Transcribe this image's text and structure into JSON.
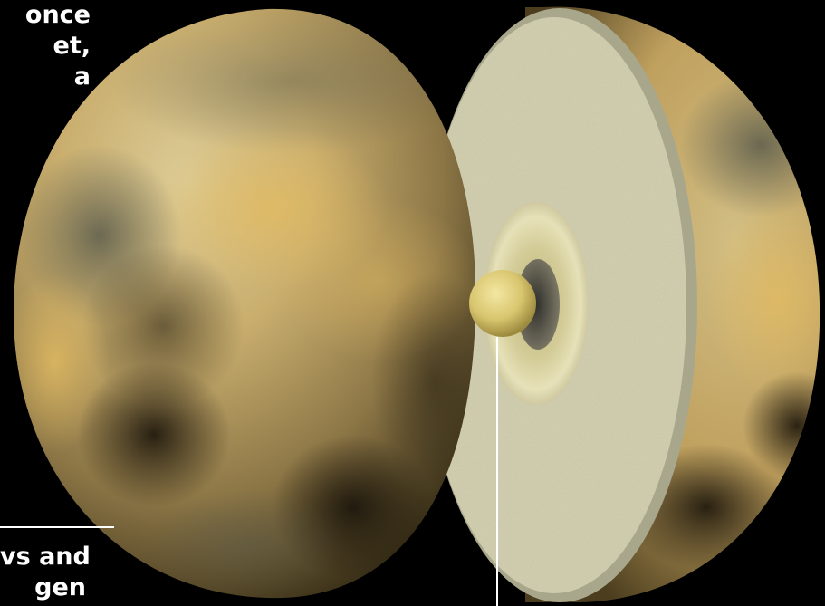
{
  "caption_top": {
    "lines": [
      "once",
      "et,",
      "a"
    ]
  },
  "caption_bottom": {
    "lines": [
      "vs and",
      "gen"
    ]
  },
  "colors": {
    "background": "#000000",
    "surface_light": "#cdbb86",
    "surface_dark": "#2a2414",
    "mantle": "#c9c6a6",
    "inner_ring": "#d9d3a2",
    "core": "#d8c56e",
    "pointer_line": "#ffffff"
  }
}
